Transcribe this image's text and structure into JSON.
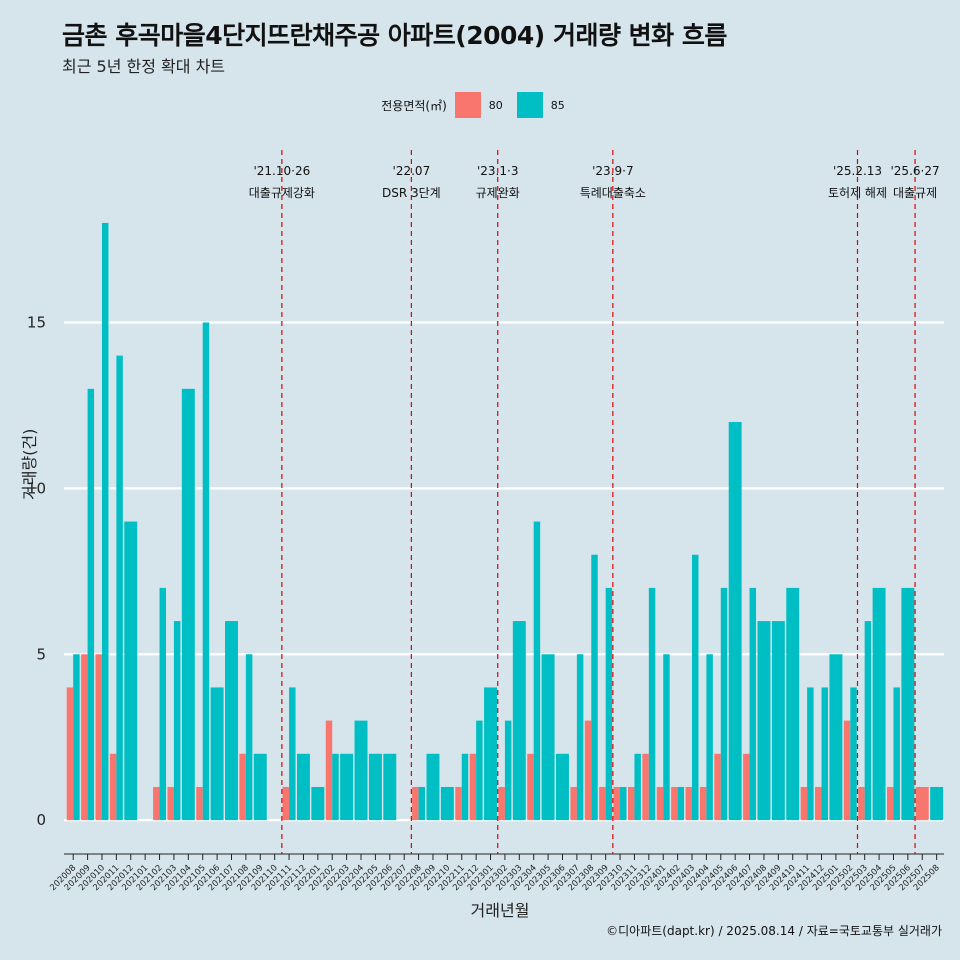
{
  "title": "금촌 후곡마을4단지뜨란채주공 아파트(2004) 거래량 변화 흐름",
  "subtitle": "최근 5년 한정 확대 차트",
  "caption": "©디아파트(dapt.kr) / 2025.08.14 / 자료=국토교통부 실거래가",
  "legend": {
    "title": "전용면적(㎡)",
    "items": [
      {
        "label": "80",
        "color": "#f8766d"
      },
      {
        "label": "85",
        "color": "#00bfc4"
      }
    ]
  },
  "chart_data": {
    "type": "bar",
    "xlabel": "거래년월",
    "ylabel": "거래량(건)",
    "ylim": [
      -0.9,
      20.5
    ],
    "yticks": [
      0,
      5,
      10,
      15
    ],
    "grid": "horizontal",
    "legend_position": "top",
    "categories": [
      "202008",
      "202009",
      "202010",
      "202011",
      "202012",
      "202101",
      "202102",
      "202103",
      "202104",
      "202105",
      "202106",
      "202107",
      "202108",
      "202109",
      "202110",
      "202111",
      "202112",
      "202201",
      "202202",
      "202203",
      "202204",
      "202205",
      "202206",
      "202207",
      "202208",
      "202209",
      "202210",
      "202211",
      "202212",
      "202301",
      "202302",
      "202303",
      "202304",
      "202305",
      "202306",
      "202307",
      "202308",
      "202309",
      "202310",
      "202311",
      "202312",
      "202401",
      "202402",
      "202403",
      "202404",
      "202405",
      "202406",
      "202407",
      "202408",
      "202409",
      "202410",
      "202411",
      "202412",
      "202501",
      "202502",
      "202503",
      "202504",
      "202505",
      "202506",
      "202507",
      "202508"
    ],
    "series": [
      {
        "name": "80",
        "color": "#f8766d",
        "values": [
          4,
          5,
          5,
          2,
          0,
          0,
          1,
          1,
          0,
          1,
          0,
          0,
          2,
          0,
          0,
          1,
          0,
          0,
          3,
          0,
          0,
          0,
          0,
          0,
          1,
          0,
          0,
          1,
          2,
          0,
          1,
          0,
          2,
          0,
          0,
          1,
          3,
          1,
          1,
          1,
          2,
          1,
          1,
          1,
          1,
          2,
          0,
          2,
          0,
          0,
          0,
          1,
          1,
          0,
          3,
          1,
          0,
          1,
          0,
          1,
          0
        ]
      },
      {
        "name": "85",
        "color": "#00bfc4",
        "values": [
          5,
          13,
          18,
          14,
          9,
          0,
          7,
          6,
          13,
          15,
          4,
          6,
          5,
          2,
          0,
          4,
          2,
          1,
          2,
          2,
          3,
          2,
          2,
          0,
          1,
          2,
          1,
          2,
          3,
          4,
          3,
          6,
          9,
          5,
          2,
          5,
          8,
          7,
          1,
          2,
          7,
          5,
          1,
          8,
          5,
          7,
          12,
          7,
          6,
          6,
          7,
          4,
          4,
          5,
          4,
          6,
          7,
          4,
          7,
          0,
          1
        ]
      }
    ],
    "annotations": [
      {
        "after": "202110",
        "date": "'21.10·26",
        "text": "대출규제강화"
      },
      {
        "after": "202207",
        "date": "'22.07",
        "text": "DSR 3단계"
      },
      {
        "after": "202301",
        "date": "'23.1·3",
        "text": "규제완화"
      },
      {
        "after": "202309",
        "date": "'23.9·7",
        "text": "특례대출축소"
      },
      {
        "after": "202502",
        "date": "'25.2.13",
        "text": "토허제 해제"
      },
      {
        "after": "202506",
        "date": "'25.6·27",
        "text": "대출규제"
      }
    ]
  }
}
